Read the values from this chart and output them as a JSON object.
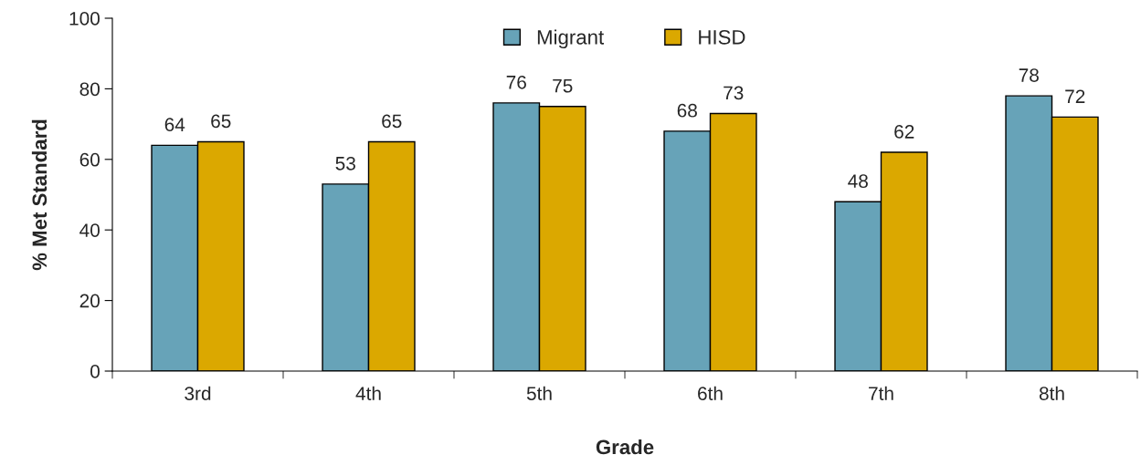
{
  "chart_data": {
    "type": "bar",
    "xlabel": "Grade",
    "ylabel": "% Met Standard",
    "categories": [
      "3rd",
      "4th",
      "5th",
      "6th",
      "7th",
      "8th"
    ],
    "series": [
      {
        "name": "Migrant",
        "color": "#67a3b8",
        "values": [
          64,
          53,
          76,
          68,
          48,
          78
        ]
      },
      {
        "name": "HISD",
        "color": "#dba800",
        "values": [
          65,
          65,
          75,
          73,
          62,
          72
        ]
      }
    ],
    "ylim": [
      0,
      100
    ],
    "yticks": [
      0,
      20,
      40,
      60,
      80,
      100
    ],
    "grid": false,
    "legend": "top",
    "data_labels": true
  }
}
